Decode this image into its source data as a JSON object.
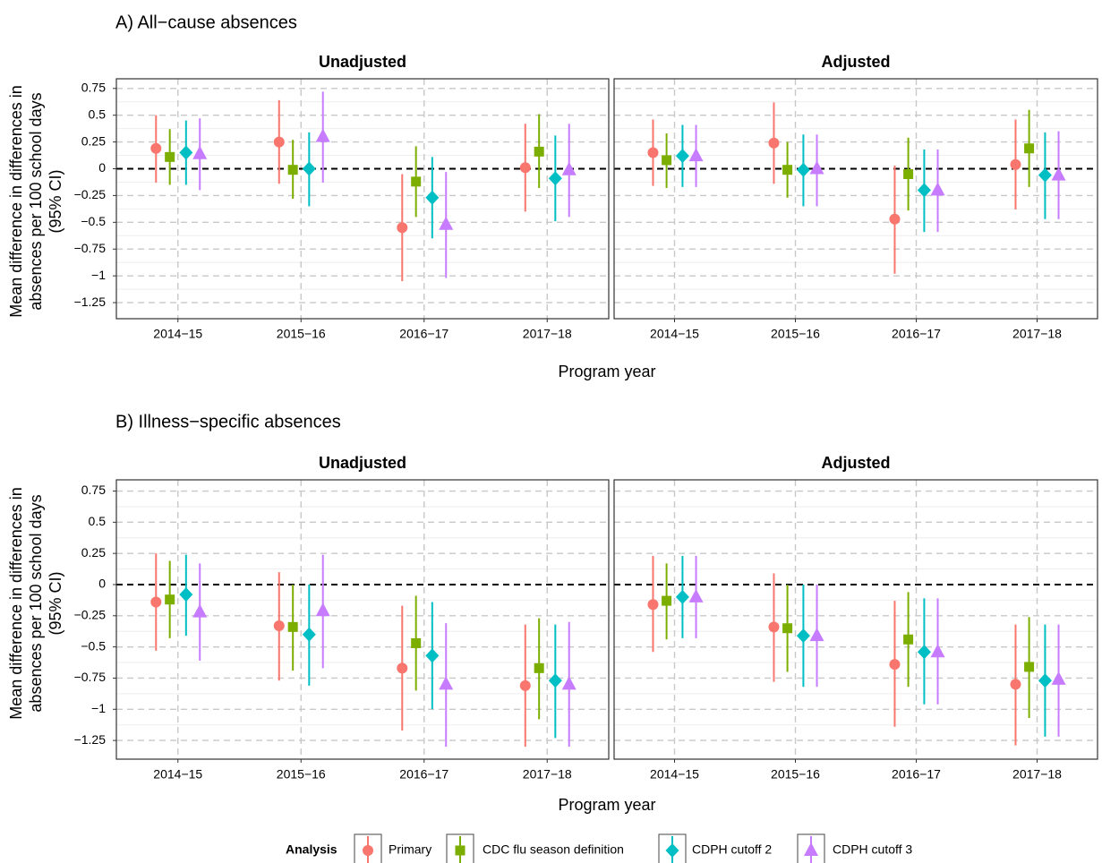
{
  "chart_data": [
    {
      "type": "scatter",
      "subtype": "point-range",
      "section_title": "A) All−cause absences",
      "ylabel": "Mean difference in differences in absences per 100 school days (95% CI)",
      "ylabel_lines": [
        "Mean difference in differences in",
        "absences per 100 school days",
        "(95% CI)"
      ],
      "xlabel": "Program year",
      "categories": [
        "2014−15",
        "2015−16",
        "2016−17",
        "2017−18"
      ],
      "ylim": [
        -1.4,
        0.84
      ],
      "yticks": [
        0.75,
        0.5,
        0.25,
        0,
        -0.25,
        -0.5,
        -0.75,
        -1,
        -1.25
      ],
      "ytick_labels": [
        "0.75",
        "0.5",
        "0.25",
        "0",
        "−0.25",
        "−0.5",
        "−0.75",
        "−1",
        "−1.25"
      ],
      "reference_line": 0,
      "grid": true,
      "panels": [
        {
          "title": "Unadjusted",
          "series": [
            {
              "name": "Primary",
              "estimates": [
                0.19,
                0.25,
                -0.55,
                0.01
              ],
              "lower": [
                -0.13,
                -0.14,
                -1.05,
                -0.4
              ],
              "upper": [
                0.5,
                0.64,
                -0.05,
                0.42
              ]
            },
            {
              "name": "CDC flu season definition",
              "estimates": [
                0.11,
                -0.01,
                -0.12,
                0.16
              ],
              "lower": [
                -0.15,
                -0.28,
                -0.45,
                -0.18
              ],
              "upper": [
                0.37,
                0.27,
                0.21,
                0.51
              ]
            },
            {
              "name": "CDPH cutoff 2",
              "estimates": [
                0.15,
                0.0,
                -0.27,
                -0.09
              ],
              "lower": [
                -0.15,
                -0.35,
                -0.65,
                -0.49
              ],
              "upper": [
                0.45,
                0.34,
                0.11,
                0.31
              ]
            },
            {
              "name": "CDPH cutoff 3",
              "estimates": [
                0.14,
                0.3,
                -0.52,
                -0.01
              ],
              "lower": [
                -0.2,
                -0.13,
                -1.02,
                -0.45
              ],
              "upper": [
                0.47,
                0.72,
                -0.03,
                0.42
              ]
            }
          ]
        },
        {
          "title": "Adjusted",
          "series": [
            {
              "name": "Primary",
              "estimates": [
                0.15,
                0.24,
                -0.47,
                0.04
              ],
              "lower": [
                -0.16,
                -0.14,
                -0.98,
                -0.38
              ],
              "upper": [
                0.46,
                0.62,
                0.03,
                0.46
              ]
            },
            {
              "name": "CDC flu season definition",
              "estimates": [
                0.08,
                -0.01,
                -0.05,
                0.19
              ],
              "lower": [
                -0.18,
                -0.27,
                -0.39,
                -0.17
              ],
              "upper": [
                0.33,
                0.25,
                0.29,
                0.55
              ]
            },
            {
              "name": "CDPH cutoff 2",
              "estimates": [
                0.12,
                -0.01,
                -0.2,
                -0.06
              ],
              "lower": [
                -0.17,
                -0.35,
                -0.59,
                -0.47
              ],
              "upper": [
                0.41,
                0.32,
                0.18,
                0.34
              ]
            },
            {
              "name": "CDPH cutoff 3",
              "estimates": [
                0.12,
                0.0,
                -0.2,
                -0.06
              ],
              "lower": [
                -0.17,
                -0.35,
                -0.59,
                -0.47
              ],
              "upper": [
                0.41,
                0.32,
                0.18,
                0.35
              ]
            }
          ]
        }
      ]
    },
    {
      "type": "scatter",
      "subtype": "point-range",
      "section_title": "B) Illness−specific absences",
      "ylabel": "Mean difference in differences in absences per 100 school days (95% CI)",
      "ylabel_lines": [
        "Mean difference in differences in",
        "absences per 100 school days",
        "(95% CI)"
      ],
      "xlabel": "Program year",
      "categories": [
        "2014−15",
        "2015−16",
        "2016−17",
        "2017−18"
      ],
      "ylim": [
        -1.4,
        0.84
      ],
      "yticks": [
        0.75,
        0.5,
        0.25,
        0,
        -0.25,
        -0.5,
        -0.75,
        -1,
        -1.25
      ],
      "ytick_labels": [
        "0.75",
        "0.5",
        "0.25",
        "0",
        "−0.25",
        "−0.5",
        "−0.75",
        "−1",
        "−1.25"
      ],
      "reference_line": 0,
      "grid": true,
      "panels": [
        {
          "title": "Unadjusted",
          "series": [
            {
              "name": "Primary",
              "estimates": [
                -0.14,
                -0.33,
                -0.67,
                -0.81
              ],
              "lower": [
                -0.53,
                -0.77,
                -1.17,
                -1.3
              ],
              "upper": [
                0.25,
                0.1,
                -0.17,
                -0.32
              ]
            },
            {
              "name": "CDC flu season definition",
              "estimates": [
                -0.12,
                -0.34,
                -0.47,
                -0.67
              ],
              "lower": [
                -0.43,
                -0.69,
                -0.85,
                -1.08
              ],
              "upper": [
                0.19,
                0.0,
                -0.09,
                -0.27
              ]
            },
            {
              "name": "CDPH cutoff 2",
              "estimates": [
                -0.08,
                -0.4,
                -0.57,
                -0.77
              ],
              "lower": [
                -0.41,
                -0.81,
                -1.0,
                -1.23
              ],
              "upper": [
                0.24,
                0.0,
                -0.14,
                -0.32
              ]
            },
            {
              "name": "CDPH cutoff 3",
              "estimates": [
                -0.22,
                -0.21,
                -0.8,
                -0.8
              ],
              "lower": [
                -0.61,
                -0.67,
                -1.3,
                -1.3
              ],
              "upper": [
                0.17,
                0.24,
                -0.31,
                -0.3
              ]
            }
          ]
        },
        {
          "title": "Adjusted",
          "series": [
            {
              "name": "Primary",
              "estimates": [
                -0.16,
                -0.34,
                -0.64,
                -0.8
              ],
              "lower": [
                -0.54,
                -0.78,
                -1.14,
                -1.29
              ],
              "upper": [
                0.23,
                0.09,
                -0.13,
                -0.32
              ]
            },
            {
              "name": "CDC flu season definition",
              "estimates": [
                -0.13,
                -0.35,
                -0.44,
                -0.66
              ],
              "lower": [
                -0.44,
                -0.7,
                -0.82,
                -1.07
              ],
              "upper": [
                0.17,
                0.0,
                -0.06,
                -0.26
              ]
            },
            {
              "name": "CDPH cutoff 2",
              "estimates": [
                -0.1,
                -0.41,
                -0.54,
                -0.77
              ],
              "lower": [
                -0.43,
                -0.82,
                -0.96,
                -1.22
              ],
              "upper": [
                0.23,
                0.0,
                -0.11,
                -0.32
              ]
            },
            {
              "name": "CDPH cutoff 3",
              "estimates": [
                -0.1,
                -0.41,
                -0.54,
                -0.76
              ],
              "lower": [
                -0.43,
                -0.82,
                -0.96,
                -1.22
              ],
              "upper": [
                0.23,
                0.0,
                -0.11,
                -0.32
              ]
            }
          ]
        }
      ]
    }
  ],
  "legend": {
    "title": "Analysis",
    "placement": "bottom",
    "items": [
      {
        "name": "Primary",
        "color": "#F8766D",
        "shape": "circle"
      },
      {
        "name": "CDC flu season definition",
        "color": "#7CAE00",
        "shape": "square"
      },
      {
        "name": "CDPH cutoff 2",
        "color": "#00BFC4",
        "shape": "diamond"
      },
      {
        "name": "CDPH cutoff 3",
        "color": "#C77CFF",
        "shape": "triangle"
      }
    ]
  },
  "colors": {
    "grid_major": "#c8c8c8",
    "grid_minor": "#eeeeee",
    "panel_border": "#333333",
    "reference_line": "#000000"
  }
}
